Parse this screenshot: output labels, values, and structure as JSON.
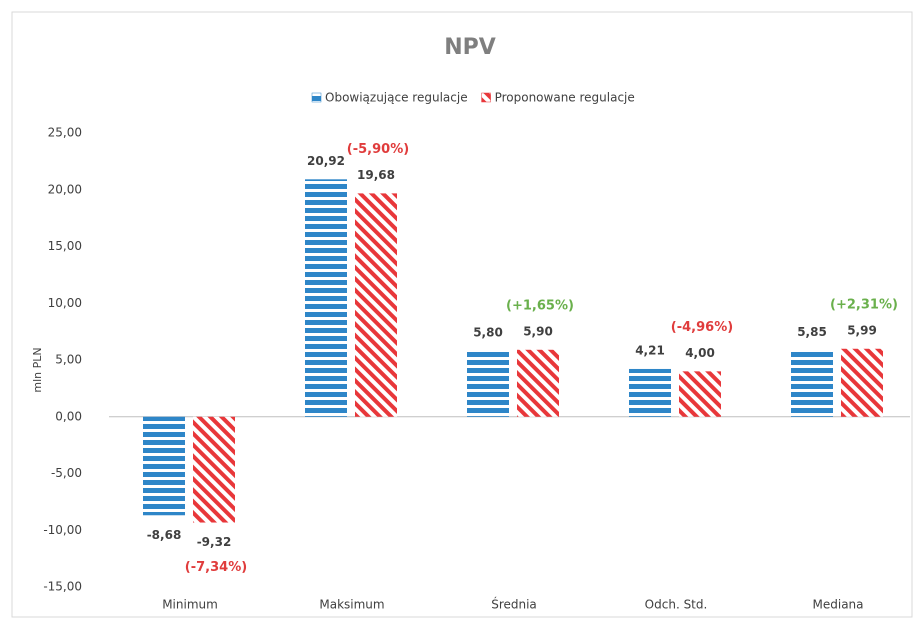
{
  "chart_data": {
    "type": "bar",
    "title": "NPV",
    "y_label": "mln PLN",
    "categories": [
      "Minimum",
      "Maksimum",
      "Średnia",
      "Odch. Std.",
      "Mediana"
    ],
    "series": [
      {
        "name": "Obowiązujące regulacje",
        "color": "#2e86c8",
        "pattern": "horizontal",
        "values": [
          -8.68,
          20.92,
          5.8,
          4.21,
          5.85
        ],
        "value_labels": [
          "-8,68",
          "20,92",
          "5,80",
          "4,21",
          "5,85"
        ]
      },
      {
        "name": "Proponowane regulacje",
        "color": "#e8373a",
        "pattern": "diagonal",
        "values": [
          -9.32,
          19.68,
          5.9,
          4.0,
          5.99
        ],
        "value_labels": [
          "-9,32",
          "19,68",
          "5,90",
          "4,00",
          "5,99"
        ]
      }
    ],
    "change_labels": [
      "(-7,34%)",
      "(-5,90%)",
      "(+1,65%)",
      "(-4,96%)",
      "(+2,31%)"
    ],
    "change_colors": [
      "#e03c3c",
      "#e03c3c",
      "#6ab04c",
      "#e03c3c",
      "#6ab04c"
    ],
    "ylim": [
      -15,
      25
    ],
    "yticks": [
      {
        "value": -15,
        "label": "-15,00"
      },
      {
        "value": -10,
        "label": "-10,00"
      },
      {
        "value": -5,
        "label": "-5,00"
      },
      {
        "value": 0,
        "label": "0,00"
      },
      {
        "value": 5,
        "label": "5,00"
      },
      {
        "value": 10,
        "label": "10,00"
      },
      {
        "value": 15,
        "label": "15,00"
      },
      {
        "value": 20,
        "label": "20,00"
      },
      {
        "value": 25,
        "label": "25,00"
      }
    ],
    "grid": false,
    "legend": "top"
  }
}
